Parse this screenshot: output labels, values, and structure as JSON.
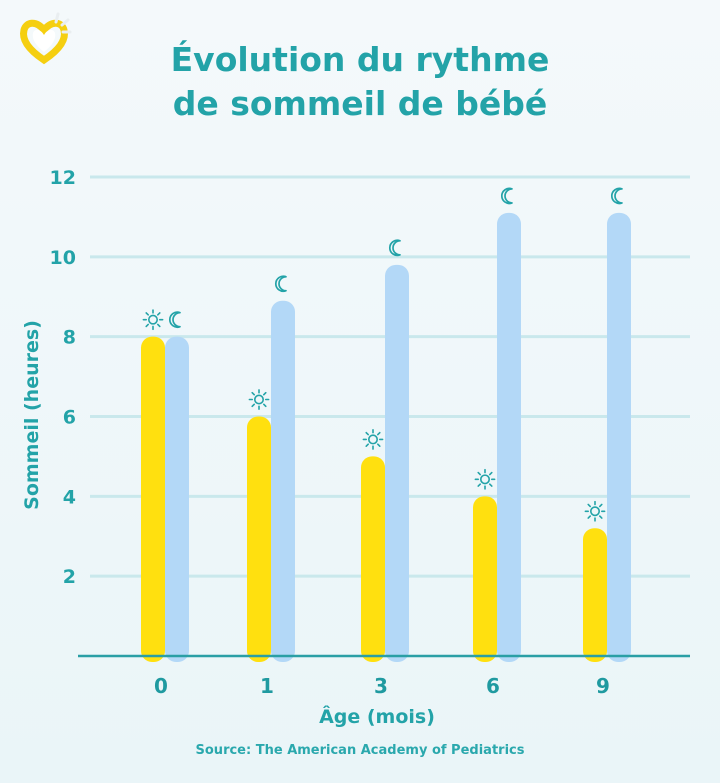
{
  "header": {
    "title_line1": "Évolution du rythme",
    "title_line2": "de sommeil de bébé"
  },
  "source": "Source: The American Academy of Pediatrics",
  "colors": {
    "accent": "#23a3a8",
    "day_bar": "#ffe00f",
    "night_bar": "#b3d8f7",
    "axis": "#2a9fa5",
    "grid": "#c9e8ec",
    "logo": "#f5cf10"
  },
  "chart_data": {
    "type": "bar",
    "xlabel": "Âge (mois)",
    "ylabel": "Sommeil (heures)",
    "ylim": [
      0,
      12
    ],
    "yticks": [
      2,
      4,
      6,
      8,
      10,
      12
    ],
    "categories": [
      "0",
      "1",
      "3",
      "6",
      "9"
    ],
    "series": [
      {
        "icon": "sun-icon",
        "values": [
          8,
          6,
          5,
          4,
          3.2
        ]
      },
      {
        "icon": "moon-icon",
        "values": [
          8,
          8.9,
          9.8,
          11.1,
          11.1
        ]
      }
    ],
    "grid": true
  }
}
